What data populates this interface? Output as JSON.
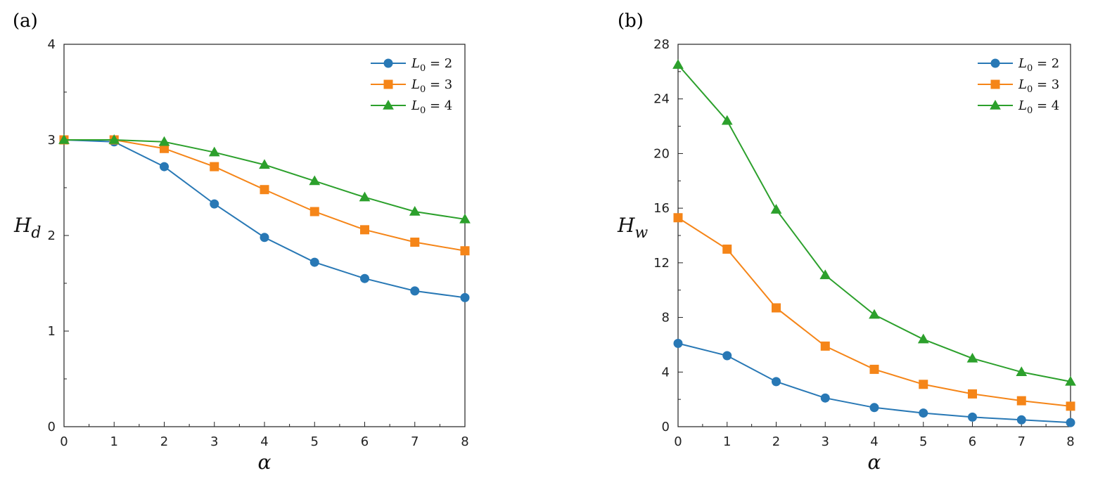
{
  "chart_data": [
    {
      "type": "line",
      "panel_label": "(a)",
      "xlabel": "α",
      "ylabel_main": "H",
      "ylabel_sub": "d",
      "x": [
        0,
        1,
        2,
        3,
        4,
        5,
        6,
        7,
        8
      ],
      "xlim": [
        0,
        8
      ],
      "ylim": [
        0,
        4
      ],
      "xticks": [
        0,
        1,
        2,
        3,
        4,
        5,
        6,
        7,
        8
      ],
      "yticks": [
        0,
        1,
        2,
        3,
        4
      ],
      "grid": false,
      "legend_position": "top-right",
      "series": [
        {
          "name_main": "L",
          "name_sub": "0",
          "name_rest": " = 2",
          "color": "#2878b5",
          "marker": "circle",
          "values": [
            3.0,
            2.98,
            2.72,
            2.33,
            1.98,
            1.72,
            1.55,
            1.42,
            1.35
          ]
        },
        {
          "name_main": "L",
          "name_sub": "0",
          "name_rest": " = 3",
          "color": "#f58518",
          "marker": "square",
          "values": [
            3.0,
            3.0,
            2.91,
            2.72,
            2.48,
            2.25,
            2.06,
            1.93,
            1.84
          ]
        },
        {
          "name_main": "L",
          "name_sub": "0",
          "name_rest": " = 4",
          "color": "#2ca02c",
          "marker": "triangle",
          "values": [
            3.0,
            3.0,
            2.98,
            2.87,
            2.74,
            2.57,
            2.4,
            2.25,
            2.17
          ]
        }
      ]
    },
    {
      "type": "line",
      "panel_label": "(b)",
      "xlabel": "α",
      "ylabel_main": "H",
      "ylabel_sub": "w",
      "x": [
        0,
        1,
        2,
        3,
        4,
        5,
        6,
        7,
        8
      ],
      "xlim": [
        0,
        8
      ],
      "ylim": [
        0,
        28
      ],
      "xticks": [
        0,
        1,
        2,
        3,
        4,
        5,
        6,
        7,
        8
      ],
      "yticks": [
        0,
        4,
        8,
        12,
        16,
        20,
        24,
        28
      ],
      "grid": false,
      "legend_position": "top-right",
      "series": [
        {
          "name_main": "L",
          "name_sub": "0",
          "name_rest": " = 2",
          "color": "#2878b5",
          "marker": "circle",
          "values": [
            6.1,
            5.2,
            3.3,
            2.1,
            1.4,
            1.0,
            0.7,
            0.5,
            0.3
          ]
        },
        {
          "name_main": "L",
          "name_sub": "0",
          "name_rest": " = 3",
          "color": "#f58518",
          "marker": "square",
          "values": [
            15.3,
            13.0,
            8.7,
            5.9,
            4.2,
            3.1,
            2.4,
            1.9,
            1.5
          ]
        },
        {
          "name_main": "L",
          "name_sub": "0",
          "name_rest": " = 4",
          "color": "#2ca02c",
          "marker": "triangle",
          "values": [
            26.5,
            22.4,
            15.9,
            11.1,
            8.2,
            6.4,
            5.0,
            4.0,
            3.3
          ]
        }
      ]
    }
  ]
}
